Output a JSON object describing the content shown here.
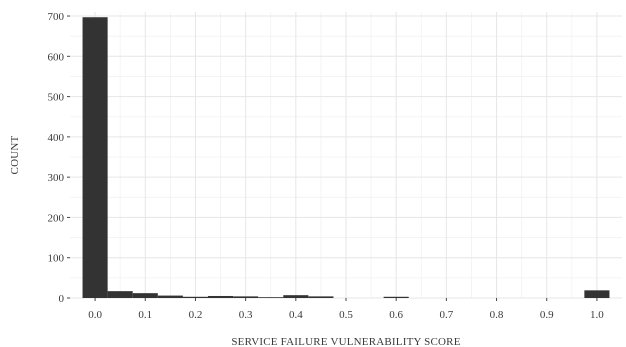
{
  "chart_data": {
    "type": "bar",
    "subtype": "histogram",
    "title": "",
    "xlabel": "SERVICE FAILURE VULNERABILITY SCORE",
    "ylabel": "COUNT",
    "xlim": [
      -0.05,
      1.05
    ],
    "ylim": [
      0,
      710
    ],
    "x_ticks": [
      0.0,
      0.1,
      0.2,
      0.3,
      0.4,
      0.5,
      0.6,
      0.7,
      0.8,
      0.9,
      1.0
    ],
    "x_tick_labels": [
      "0.0",
      "0.1",
      "0.2",
      "0.3",
      "0.4",
      "0.5",
      "0.6",
      "0.7",
      "0.8",
      "0.9",
      "1.0"
    ],
    "y_ticks": [
      0,
      100,
      200,
      300,
      400,
      500,
      600,
      700
    ],
    "y_tick_labels": [
      "0",
      "100",
      "200",
      "300",
      "400",
      "500",
      "600",
      "700"
    ],
    "bin_width": 0.05,
    "bins": [
      {
        "x": 0.0,
        "count": 697
      },
      {
        "x": 0.05,
        "count": 17
      },
      {
        "x": 0.1,
        "count": 12
      },
      {
        "x": 0.15,
        "count": 6
      },
      {
        "x": 0.2,
        "count": 3
      },
      {
        "x": 0.25,
        "count": 5
      },
      {
        "x": 0.3,
        "count": 4
      },
      {
        "x": 0.35,
        "count": 2
      },
      {
        "x": 0.4,
        "count": 7
      },
      {
        "x": 0.45,
        "count": 4
      },
      {
        "x": 0.6,
        "count": 3
      },
      {
        "x": 1.0,
        "count": 19
      }
    ],
    "bar_color": "#333333",
    "grid": true,
    "legend": "none"
  }
}
